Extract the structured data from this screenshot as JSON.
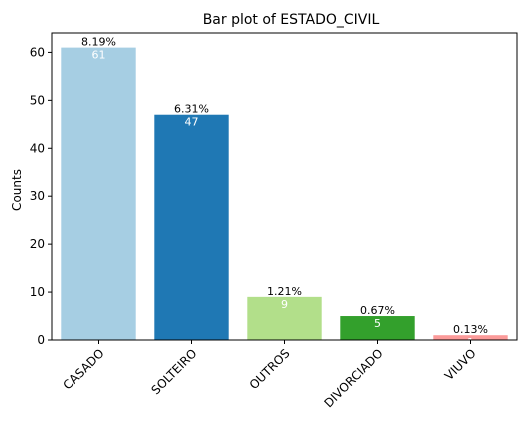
{
  "chart_data": {
    "type": "bar",
    "title": "Bar plot of ESTADO_CIVIL",
    "xlabel": "",
    "ylabel": "Counts",
    "categories": [
      "CASADO",
      "SOLTEIRO",
      "OUTROS",
      "DIVORCIADO",
      "VIUVO"
    ],
    "values": [
      61,
      47,
      9,
      5,
      1
    ],
    "value_labels": [
      "61",
      "47",
      "9",
      "5",
      "1"
    ],
    "percent_labels": [
      "8.19%",
      "6.31%",
      "1.21%",
      "0.67%",
      "0.13%"
    ],
    "colors": [
      "#a6cee3",
      "#1f78b4",
      "#b2df8a",
      "#33a02c",
      "#fb9a99"
    ],
    "yticks": [
      0,
      10,
      20,
      30,
      40,
      50,
      60
    ],
    "ylim": [
      0,
      64.05
    ],
    "grid": false,
    "legend": "none",
    "xtick_rotation": "45 degrees"
  }
}
